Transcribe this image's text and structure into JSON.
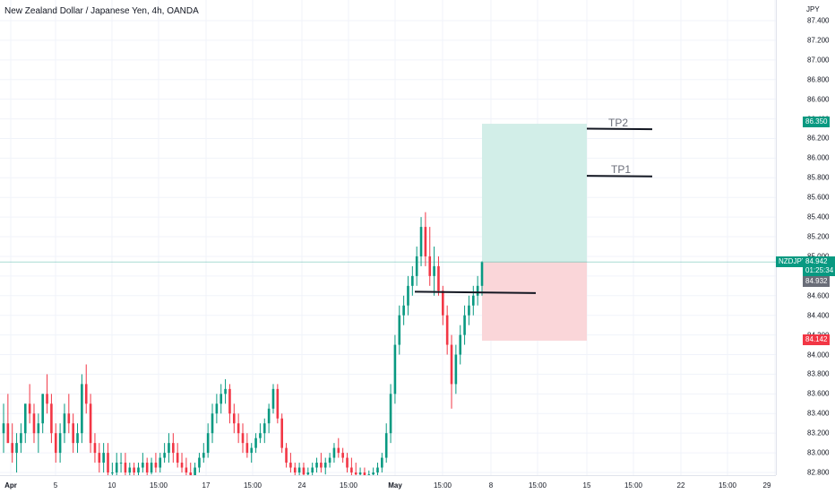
{
  "header": {
    "title": "New Zealand Dollar / Japanese Yen, 4h, OANDA"
  },
  "price_axis": {
    "currency": "JPY",
    "ticks": [
      "87.400",
      "87.200",
      "87.000",
      "86.800",
      "86.600",
      "86.400",
      "86.200",
      "86.000",
      "85.800",
      "85.600",
      "85.400",
      "85.200",
      "85.000",
      "84.800",
      "84.600",
      "84.400",
      "84.200",
      "84.000",
      "83.800",
      "83.600",
      "83.400",
      "83.200",
      "83.000",
      "82.800"
    ]
  },
  "time_axis": {
    "ticks": [
      "Apr",
      "5",
      "10",
      "15:00",
      "17",
      "15:00",
      "24",
      "15:00",
      "May",
      "15:00",
      "8",
      "15:00",
      "15",
      "15:00",
      "22",
      "15:00",
      "29"
    ]
  },
  "badges": {
    "tp_price": "86.350",
    "symbol": "NZDJPY",
    "last_price": "84.942",
    "countdown": "01:25:34",
    "bid_price": "84.932",
    "sl_price": "84.142"
  },
  "annotations": {
    "tp2": "TP2",
    "tp1": "TP1"
  },
  "colors": {
    "up": "#089981",
    "down": "#f23645",
    "profit_zone": "#d2eee8",
    "loss_zone": "#fad6d9"
  },
  "chart_data": {
    "type": "candlestick",
    "symbol": "NZDJPY",
    "timeframe": "4h",
    "ylim": [
      82.75,
      87.45
    ],
    "position": {
      "entry": 84.942,
      "take_profit": 86.35,
      "stop_loss": 84.142
    },
    "levels": [
      {
        "label": "TP2",
        "value": 86.3
      },
      {
        "label": "TP1",
        "value": 85.82
      },
      {
        "label": "",
        "value": 84.64
      }
    ],
    "candles": [
      [
        83.2,
        83.5,
        83.0,
        83.3
      ],
      [
        83.3,
        83.6,
        83.1,
        83.1
      ],
      [
        83.1,
        83.3,
        82.9,
        83.0
      ],
      [
        83.0,
        83.2,
        82.8,
        83.1
      ],
      [
        83.1,
        83.3,
        83.0,
        83.2
      ],
      [
        83.2,
        83.5,
        83.1,
        83.5
      ],
      [
        83.5,
        83.7,
        83.3,
        83.4
      ],
      [
        83.4,
        83.5,
        83.1,
        83.2
      ],
      [
        83.2,
        83.4,
        83.0,
        83.3
      ],
      [
        83.3,
        83.6,
        83.2,
        83.6
      ],
      [
        83.6,
        83.8,
        83.4,
        83.5
      ],
      [
        83.5,
        83.6,
        83.1,
        83.2
      ],
      [
        83.2,
        83.3,
        82.9,
        83.0
      ],
      [
        83.0,
        83.3,
        82.9,
        83.2
      ],
      [
        83.2,
        83.5,
        83.1,
        83.4
      ],
      [
        83.4,
        83.6,
        83.2,
        83.3
      ],
      [
        83.3,
        83.4,
        83.0,
        83.1
      ],
      [
        83.1,
        83.3,
        83.0,
        83.2
      ],
      [
        83.2,
        83.8,
        83.1,
        83.7
      ],
      [
        83.7,
        83.9,
        83.4,
        83.5
      ],
      [
        83.5,
        83.6,
        83.0,
        83.1
      ],
      [
        83.1,
        83.2,
        82.9,
        83.0
      ],
      [
        83.0,
        83.1,
        82.8,
        82.9
      ],
      [
        82.9,
        83.1,
        82.8,
        83.0
      ],
      [
        83.0,
        83.1,
        82.7,
        82.8
      ],
      [
        82.8,
        82.9,
        82.7,
        82.8
      ],
      [
        82.8,
        83.0,
        82.7,
        82.9
      ],
      [
        82.9,
        83.0,
        82.8,
        82.9
      ],
      [
        82.9,
        83.0,
        82.75,
        82.8
      ],
      [
        82.8,
        82.9,
        82.7,
        82.85
      ],
      [
        82.85,
        82.9,
        82.7,
        82.8
      ],
      [
        82.8,
        82.9,
        82.7,
        82.85
      ],
      [
        82.85,
        83.0,
        82.8,
        82.9
      ],
      [
        82.9,
        82.95,
        82.75,
        82.8
      ],
      [
        82.8,
        82.95,
        82.78,
        82.9
      ],
      [
        82.9,
        83.0,
        82.8,
        82.85
      ],
      [
        82.85,
        83.0,
        82.8,
        82.95
      ],
      [
        82.95,
        83.1,
        82.9,
        83.0
      ],
      [
        83.0,
        83.2,
        82.9,
        83.1
      ],
      [
        83.1,
        83.2,
        82.9,
        83.0
      ],
      [
        83.0,
        83.1,
        82.85,
        82.9
      ],
      [
        82.9,
        83.0,
        82.8,
        82.85
      ],
      [
        82.85,
        82.95,
        82.75,
        82.8
      ],
      [
        82.8,
        82.9,
        82.7,
        82.75
      ],
      [
        82.75,
        82.9,
        82.7,
        82.85
      ],
      [
        82.85,
        83.0,
        82.8,
        82.95
      ],
      [
        82.95,
        83.1,
        82.9,
        83.0
      ],
      [
        83.0,
        83.3,
        82.95,
        83.2
      ],
      [
        83.2,
        83.5,
        83.1,
        83.4
      ],
      [
        83.4,
        83.6,
        83.3,
        83.5
      ],
      [
        83.5,
        83.7,
        83.4,
        83.6
      ],
      [
        83.6,
        83.75,
        83.5,
        83.65
      ],
      [
        83.65,
        83.7,
        83.3,
        83.4
      ],
      [
        83.4,
        83.5,
        83.2,
        83.3
      ],
      [
        83.3,
        83.4,
        83.1,
        83.2
      ],
      [
        83.2,
        83.3,
        83.0,
        83.1
      ],
      [
        83.1,
        83.2,
        82.95,
        83.0
      ],
      [
        83.0,
        83.1,
        82.9,
        83.05
      ],
      [
        83.05,
        83.2,
        83.0,
        83.15
      ],
      [
        83.15,
        83.3,
        83.1,
        83.2
      ],
      [
        83.2,
        83.35,
        83.1,
        83.3
      ],
      [
        83.3,
        83.5,
        83.2,
        83.45
      ],
      [
        83.45,
        83.7,
        83.4,
        83.65
      ],
      [
        83.65,
        83.7,
        83.3,
        83.35
      ],
      [
        83.35,
        83.4,
        83.0,
        83.05
      ],
      [
        83.05,
        83.1,
        82.85,
        82.9
      ],
      [
        82.9,
        83.0,
        82.8,
        82.85
      ],
      [
        82.85,
        82.9,
        82.7,
        82.8
      ],
      [
        82.8,
        82.9,
        82.75,
        82.85
      ],
      [
        82.85,
        82.9,
        82.7,
        82.78
      ],
      [
        82.78,
        82.85,
        82.7,
        82.8
      ],
      [
        82.8,
        82.9,
        82.75,
        82.85
      ],
      [
        82.85,
        82.95,
        82.8,
        82.9
      ],
      [
        82.9,
        83.0,
        82.8,
        82.85
      ],
      [
        82.85,
        82.95,
        82.78,
        82.9
      ],
      [
        82.9,
        83.0,
        82.85,
        82.95
      ],
      [
        82.95,
        83.1,
        82.9,
        83.05
      ],
      [
        83.05,
        83.15,
        82.95,
        83.0
      ],
      [
        83.0,
        83.05,
        82.9,
        82.95
      ],
      [
        82.95,
        83.0,
        82.8,
        82.85
      ],
      [
        82.85,
        82.95,
        82.75,
        82.8
      ],
      [
        82.8,
        82.9,
        82.7,
        82.78
      ],
      [
        82.78,
        82.85,
        82.7,
        82.8
      ],
      [
        82.8,
        82.85,
        82.72,
        82.76
      ],
      [
        82.76,
        82.82,
        82.7,
        82.78
      ],
      [
        82.78,
        82.85,
        82.7,
        82.8
      ],
      [
        82.8,
        82.9,
        82.75,
        82.85
      ],
      [
        82.85,
        83.0,
        82.8,
        82.95
      ],
      [
        82.95,
        83.3,
        82.9,
        83.2
      ],
      [
        83.2,
        83.7,
        83.1,
        83.6
      ],
      [
        83.6,
        84.2,
        83.5,
        84.1
      ],
      [
        84.1,
        84.5,
        84.0,
        84.4
      ],
      [
        84.4,
        84.6,
        84.3,
        84.5
      ],
      [
        84.5,
        84.8,
        84.4,
        84.7
      ],
      [
        84.7,
        84.9,
        84.6,
        84.8
      ],
      [
        84.8,
        85.1,
        84.7,
        85.0
      ],
      [
        85.0,
        85.4,
        84.9,
        85.3
      ],
      [
        85.3,
        85.45,
        84.9,
        85.0
      ],
      [
        85.0,
        85.3,
        84.7,
        84.8
      ],
      [
        84.8,
        85.1,
        84.6,
        84.9
      ],
      [
        84.9,
        85.0,
        84.6,
        84.65
      ],
      [
        84.65,
        84.7,
        84.3,
        84.4
      ],
      [
        84.4,
        84.5,
        84.0,
        84.1
      ],
      [
        84.1,
        84.2,
        83.45,
        83.7
      ],
      [
        83.7,
        84.1,
        83.6,
        84.0
      ],
      [
        84.0,
        84.3,
        83.9,
        84.2
      ],
      [
        84.2,
        84.5,
        84.1,
        84.4
      ],
      [
        84.4,
        84.6,
        84.3,
        84.5
      ],
      [
        84.5,
        84.7,
        84.4,
        84.6
      ],
      [
        84.6,
        84.8,
        84.5,
        84.7
      ],
      [
        84.7,
        84.95,
        84.6,
        84.94
      ]
    ]
  }
}
